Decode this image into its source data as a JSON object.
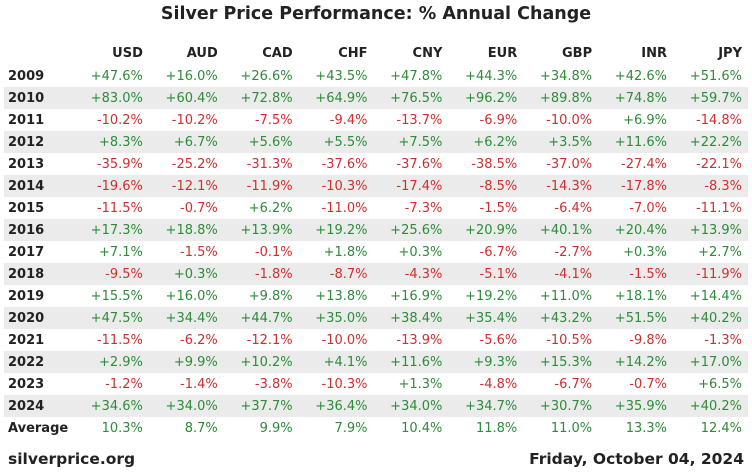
{
  "chart_data": {
    "type": "table",
    "title": "Silver Price Performance: % Annual Change",
    "columns": [
      "USD",
      "AUD",
      "CAD",
      "CHF",
      "CNY",
      "EUR",
      "GBP",
      "INR",
      "JPY"
    ],
    "rows": [
      {
        "year": "2009",
        "values": [
          "+47.6%",
          "+16.0%",
          "+26.6%",
          "+43.5%",
          "+47.8%",
          "+44.3%",
          "+34.8%",
          "+42.6%",
          "+51.6%"
        ]
      },
      {
        "year": "2010",
        "values": [
          "+83.0%",
          "+60.4%",
          "+72.8%",
          "+64.9%",
          "+76.5%",
          "+96.2%",
          "+89.8%",
          "+74.8%",
          "+59.7%"
        ]
      },
      {
        "year": "2011",
        "values": [
          "-10.2%",
          "-10.2%",
          "-7.5%",
          "-9.4%",
          "-13.7%",
          "-6.9%",
          "-10.0%",
          "+6.9%",
          "-14.8%"
        ]
      },
      {
        "year": "2012",
        "values": [
          "+8.3%",
          "+6.7%",
          "+5.6%",
          "+5.5%",
          "+7.5%",
          "+6.2%",
          "+3.5%",
          "+11.6%",
          "+22.2%"
        ]
      },
      {
        "year": "2013",
        "values": [
          "-35.9%",
          "-25.2%",
          "-31.3%",
          "-37.6%",
          "-37.6%",
          "-38.5%",
          "-37.0%",
          "-27.4%",
          "-22.1%"
        ]
      },
      {
        "year": "2014",
        "values": [
          "-19.6%",
          "-12.1%",
          "-11.9%",
          "-10.3%",
          "-17.4%",
          "-8.5%",
          "-14.3%",
          "-17.8%",
          "-8.3%"
        ]
      },
      {
        "year": "2015",
        "values": [
          "-11.5%",
          "-0.7%",
          "+6.2%",
          "-11.0%",
          "-7.3%",
          "-1.5%",
          "-6.4%",
          "-7.0%",
          "-11.1%"
        ]
      },
      {
        "year": "2016",
        "values": [
          "+17.3%",
          "+18.8%",
          "+13.9%",
          "+19.2%",
          "+25.6%",
          "+20.9%",
          "+40.1%",
          "+20.4%",
          "+13.9%"
        ]
      },
      {
        "year": "2017",
        "values": [
          "+7.1%",
          "-1.5%",
          "-0.1%",
          "+1.8%",
          "+0.3%",
          "-6.7%",
          "-2.7%",
          "+0.3%",
          "+2.7%"
        ]
      },
      {
        "year": "2018",
        "values": [
          "-9.5%",
          "+0.3%",
          "-1.8%",
          "-8.7%",
          "-4.3%",
          "-5.1%",
          "-4.1%",
          "-1.5%",
          "-11.9%"
        ]
      },
      {
        "year": "2019",
        "values": [
          "+15.5%",
          "+16.0%",
          "+9.8%",
          "+13.8%",
          "+16.9%",
          "+19.2%",
          "+11.0%",
          "+18.1%",
          "+14.4%"
        ]
      },
      {
        "year": "2020",
        "values": [
          "+47.5%",
          "+34.4%",
          "+44.7%",
          "+35.0%",
          "+38.4%",
          "+35.4%",
          "+43.2%",
          "+51.5%",
          "+40.2%"
        ]
      },
      {
        "year": "2021",
        "values": [
          "-11.5%",
          "-6.2%",
          "-12.1%",
          "-10.0%",
          "-13.9%",
          "-5.6%",
          "-10.5%",
          "-9.8%",
          "-1.3%"
        ]
      },
      {
        "year": "2022",
        "values": [
          "+2.9%",
          "+9.9%",
          "+10.2%",
          "+4.1%",
          "+11.6%",
          "+9.3%",
          "+15.3%",
          "+14.2%",
          "+17.0%"
        ]
      },
      {
        "year": "2023",
        "values": [
          "-1.2%",
          "-1.4%",
          "-3.8%",
          "-10.3%",
          "+1.3%",
          "-4.8%",
          "-6.7%",
          "-0.7%",
          "+6.5%"
        ]
      },
      {
        "year": "2024",
        "values": [
          "+34.6%",
          "+34.0%",
          "+37.7%",
          "+36.4%",
          "+34.0%",
          "+34.7%",
          "+30.7%",
          "+35.9%",
          "+40.2%"
        ]
      }
    ],
    "average": {
      "label": "Average",
      "values": [
        "10.3%",
        "8.7%",
        "9.9%",
        "7.9%",
        "10.4%",
        "11.8%",
        "11.0%",
        "13.3%",
        "12.4%"
      ]
    }
  },
  "footer": {
    "source": "silverprice.org",
    "date": "Friday, October 04, 2024"
  },
  "colors": {
    "positive": "#2e8b3a",
    "negative": "#d12e2e",
    "stripe": "#ebebeb"
  }
}
